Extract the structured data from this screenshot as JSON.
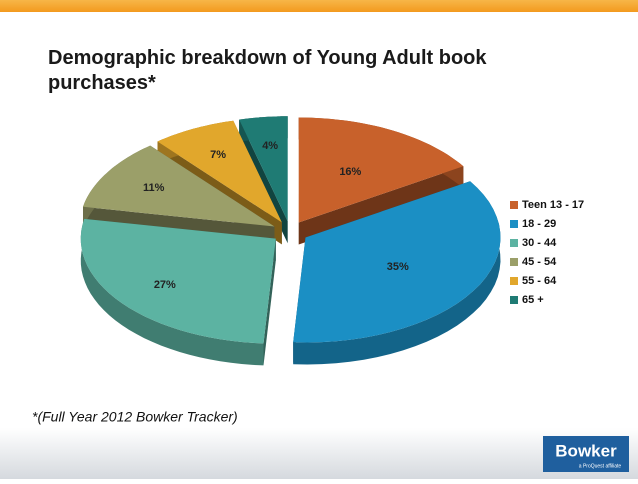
{
  "chart_data": {
    "type": "pie3d",
    "title": "Demographic breakdown of Young Adult book purchases*",
    "annotations": [
      "*(Full Year 2012 Bowker Tracker)"
    ],
    "categories": [
      "Teen 13 - 17",
      "18 - 29",
      "30 - 44",
      "45 - 54",
      "55 - 64",
      "65 +"
    ],
    "values": [
      16,
      35,
      27,
      11,
      7,
      4
    ],
    "value_labels": [
      "16%",
      "35%",
      "27%",
      "11%",
      "7%",
      "4%"
    ],
    "colors": [
      "#c8612b",
      "#1b8fc4",
      "#5cb3a2",
      "#9b9f69",
      "#e1a72c",
      "#1f7b74"
    ],
    "legend": "right"
  },
  "logo": {
    "name": "Bowker",
    "tagline": "a ProQuest affiliate"
  }
}
